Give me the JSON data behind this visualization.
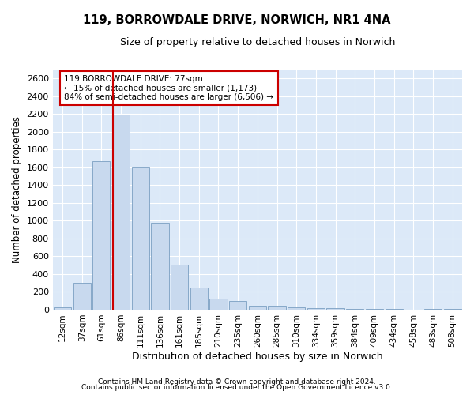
{
  "title": "119, BORROWDALE DRIVE, NORWICH, NR1 4NA",
  "subtitle": "Size of property relative to detached houses in Norwich",
  "xlabel": "Distribution of detached houses by size in Norwich",
  "ylabel": "Number of detached properties",
  "bar_color": "#c8d9ee",
  "bar_edge_color": "#7a9fc2",
  "vline_color": "#cc0000",
  "annotation_text": "119 BORROWDALE DRIVE: 77sqm\n← 15% of detached houses are smaller (1,173)\n84% of semi-detached houses are larger (6,506) →",
  "annotation_box_color": "#ffffff",
  "annotation_box_edge": "#cc0000",
  "categories": [
    "12sqm",
    "37sqm",
    "61sqm",
    "86sqm",
    "111sqm",
    "136sqm",
    "161sqm",
    "185sqm",
    "210sqm",
    "235sqm",
    "260sqm",
    "285sqm",
    "310sqm",
    "334sqm",
    "359sqm",
    "384sqm",
    "409sqm",
    "434sqm",
    "458sqm",
    "483sqm",
    "508sqm"
  ],
  "values": [
    25,
    300,
    1670,
    2190,
    1600,
    980,
    510,
    250,
    125,
    95,
    45,
    40,
    30,
    20,
    18,
    12,
    5,
    5,
    3,
    10,
    5
  ],
  "ylim": [
    0,
    2700
  ],
  "yticks": [
    0,
    200,
    400,
    600,
    800,
    1000,
    1200,
    1400,
    1600,
    1800,
    2000,
    2200,
    2400,
    2600
  ],
  "footer1": "Contains HM Land Registry data © Crown copyright and database right 2024.",
  "footer2": "Contains public sector information licensed under the Open Government Licence v3.0.",
  "background_color": "#ffffff",
  "plot_bg_color": "#dce9f8"
}
